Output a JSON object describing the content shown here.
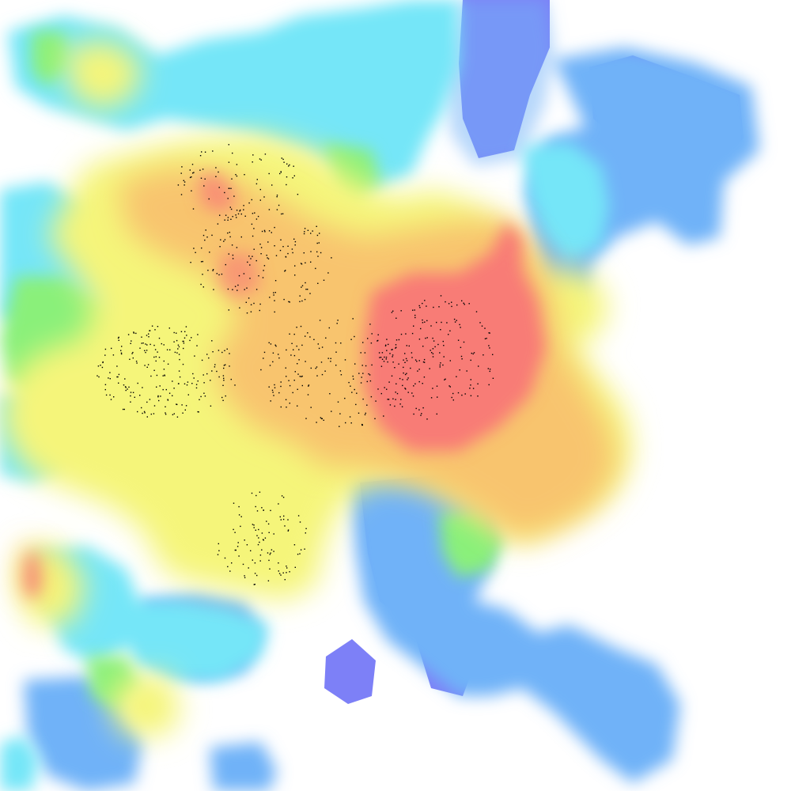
{
  "map": {
    "type": "signal-coverage-heatmap",
    "legend": "none",
    "labels": "none",
    "colors": {
      "background": "#ffffff",
      "lowest": "#7d80f7",
      "low": "#6fb2f8",
      "mid_low": "#74e6f8",
      "mid": "#8af07a",
      "mid_high": "#f5f57a",
      "high": "#f8c46e",
      "highest": "#f87c76",
      "markers": "#000000"
    },
    "color_scale_order": [
      "lowest",
      "low",
      "mid_low",
      "mid",
      "mid_high",
      "high",
      "highest"
    ]
  }
}
